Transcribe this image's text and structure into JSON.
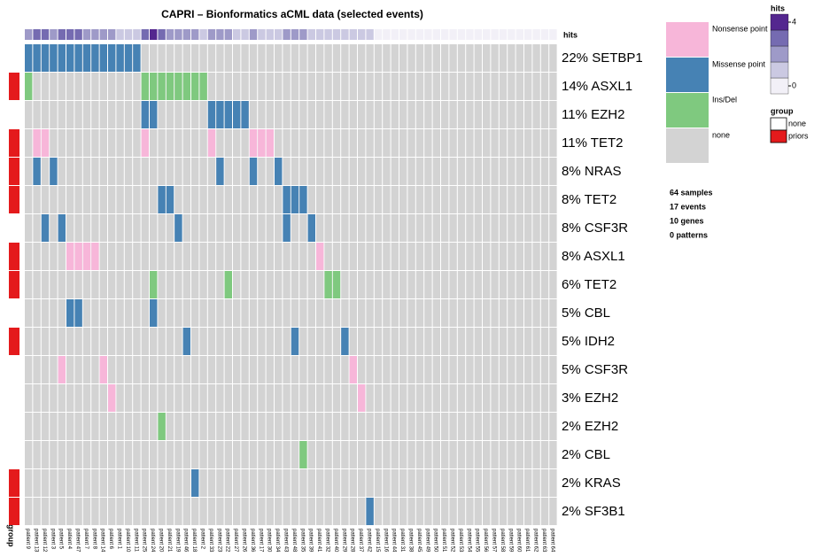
{
  "chart_data": {
    "type": "oncoprint",
    "title": "CAPRI – Bionformatics aCML data (selected events)",
    "hits_label": "hits",
    "group_label": "group",
    "samples": [
      "patient 9",
      "patient 13",
      "patient 12",
      "patient 3",
      "patient 5",
      "patient 4",
      "patient 47",
      "patient 7",
      "patient 8",
      "patient 14",
      "patient 6",
      "patient 1",
      "patient 10",
      "patient 11",
      "patient 25",
      "patient 24",
      "patient 20",
      "patient 21",
      "patient 19",
      "patient 46",
      "patient 18",
      "patient 2",
      "patient 33",
      "patient 23",
      "patient 22",
      "patient 27",
      "patient 26",
      "patient 36",
      "patient 17",
      "patient 30",
      "patient 34",
      "patient 43",
      "patient 48",
      "patient 35",
      "patient 39",
      "patient 41",
      "patient 32",
      "patient 40",
      "patient 29",
      "patient 28",
      "patient 37",
      "patient 42",
      "patient 15",
      "patient 16",
      "patient 44",
      "patient 31",
      "patient 38",
      "patient 45",
      "patient 49",
      "patient 50",
      "patient 51",
      "patient 52",
      "patient 53",
      "patient 54",
      "patient 55",
      "patient 56",
      "patient 57",
      "patient 58",
      "patient 59",
      "patient 60",
      "patient 61",
      "patient 62",
      "patient 63",
      "patient 64"
    ],
    "hits": [
      2,
      3,
      3,
      2,
      3,
      3,
      3,
      2,
      2,
      2,
      2,
      1,
      1,
      1,
      3,
      4,
      3,
      2,
      2,
      2,
      2,
      1,
      2,
      2,
      2,
      1,
      1,
      2,
      1,
      1,
      1,
      2,
      2,
      2,
      1,
      1,
      1,
      1,
      1,
      1,
      1,
      1,
      0,
      0,
      0,
      0,
      0,
      0,
      0,
      0,
      0,
      0,
      0,
      0,
      0,
      0,
      0,
      0,
      0,
      0,
      0,
      0,
      0,
      0
    ],
    "hits_colors": [
      "#f2f0f7",
      "#cbc9e2",
      "#9e9ac8",
      "#756bb1",
      "#54278f"
    ],
    "hits_ticks": [
      0,
      4
    ],
    "legend": [
      {
        "key": "nonsense",
        "name": "Nonsense point",
        "color": "#f7b6d9"
      },
      {
        "key": "missense",
        "name": "Missense point",
        "color": "#4682b4"
      },
      {
        "key": "indel",
        "name": "Ins/Del",
        "color": "#7fc97f"
      },
      {
        "key": "none",
        "name": "none",
        "color": "#d3d3d3"
      }
    ],
    "groups": [
      {
        "name": "none",
        "color": "#ffffff"
      },
      {
        "name": "priors",
        "color": "#e41a1c"
      }
    ],
    "stats": [
      "64 samples",
      "17 events",
      "10 genes",
      "0 patterns"
    ],
    "rows": [
      {
        "label": "22% SETBP1",
        "group": 0,
        "missense": [
          0,
          1,
          2,
          3,
          4,
          5,
          6,
          7,
          8,
          9,
          10,
          11,
          12,
          13
        ]
      },
      {
        "label": "14% ASXL1",
        "group": 1,
        "indel": [
          0,
          14,
          15,
          16,
          17,
          18,
          19,
          20,
          21
        ]
      },
      {
        "label": "11% EZH2",
        "group": 0,
        "missense": [
          14,
          15,
          22,
          23,
          24,
          25,
          26
        ]
      },
      {
        "label": "11% TET2",
        "group": 1,
        "nonsense": [
          1,
          2,
          14,
          22,
          27,
          28,
          29
        ]
      },
      {
        "label": "8% NRAS",
        "group": 1,
        "missense": [
          1,
          3,
          23,
          27,
          30
        ]
      },
      {
        "label": "8% TET2",
        "group": 1,
        "missense": [
          16,
          17,
          31,
          32,
          33
        ]
      },
      {
        "label": "8% CSF3R",
        "group": 0,
        "missense": [
          2,
          4,
          18,
          31,
          34
        ]
      },
      {
        "label": "8% ASXL1",
        "group": 1,
        "nonsense": [
          5,
          6,
          7,
          8,
          35
        ]
      },
      {
        "label": "6% TET2",
        "group": 1,
        "indel": [
          15,
          24,
          36,
          37
        ]
      },
      {
        "label": "5% CBL",
        "group": 0,
        "missense": [
          5,
          6,
          15
        ]
      },
      {
        "label": "5% IDH2",
        "group": 1,
        "missense": [
          19,
          32,
          38
        ]
      },
      {
        "label": "5% CSF3R",
        "group": 0,
        "nonsense": [
          4,
          9,
          39
        ]
      },
      {
        "label": "3% EZH2",
        "group": 0,
        "nonsense": [
          10,
          40
        ]
      },
      {
        "label": "2% EZH2",
        "group": 0,
        "indel": [
          16
        ]
      },
      {
        "label": "2% CBL",
        "group": 0,
        "indel": [
          33
        ]
      },
      {
        "label": "2% KRAS",
        "group": 1,
        "missense": [
          20
        ]
      },
      {
        "label": "2% SF3B1",
        "group": 1,
        "missense": [
          41
        ]
      }
    ]
  }
}
